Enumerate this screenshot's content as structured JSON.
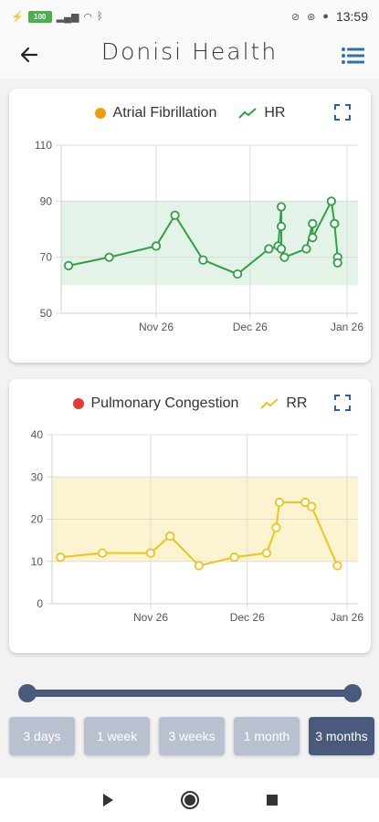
{
  "status_bar": {
    "time": "13:59",
    "battery": "100"
  },
  "app": {
    "title": "Donisi Health"
  },
  "colors": {
    "hr": "#2ea043",
    "rr": "#f0c419",
    "afib_dot": "#f39c12",
    "congestion_dot": "#e53935",
    "accent": "#4a5a7c",
    "inactive_button": "#b9c1d1"
  },
  "card1": {
    "indicator_label": "Atrial Fibrillation",
    "series_label": "HR"
  },
  "card2": {
    "indicator_label": "Pulmonary Congestion",
    "series_label": "RR"
  },
  "chart_data": [
    {
      "type": "line",
      "title": "",
      "series": [
        {
          "name": "HR",
          "x": [
            "Oct 29",
            "Nov 11",
            "Nov 26",
            "Dec 2",
            "Dec 11",
            "Dec 22",
            "Jan 1",
            "Jan 4",
            "Jan 5",
            "Jan 5",
            "Jan 5",
            "Jan 6",
            "Jan 13",
            "Jan 15",
            "Jan 15",
            "Jan 21",
            "Jan 22",
            "Jan 23",
            "Jan 23"
          ],
          "values": [
            67,
            70,
            74,
            85,
            69,
            64,
            73,
            74,
            88,
            81,
            73,
            70,
            73,
            82,
            77,
            90,
            82,
            70,
            68
          ]
        }
      ],
      "xticks": [
        "Nov 26",
        "Dec 26",
        "Jan 26"
      ],
      "yticks": [
        50,
        70,
        90,
        110
      ],
      "ylim": [
        50,
        110
      ],
      "normal_band": [
        60,
        90
      ],
      "grid": true
    },
    {
      "type": "line",
      "title": "",
      "series": [
        {
          "name": "RR",
          "x": [
            "Oct 29",
            "Nov 11",
            "Nov 26",
            "Dec 2",
            "Dec 11",
            "Dec 22",
            "Jan 1",
            "Jan 4",
            "Jan 5",
            "Jan 13",
            "Jan 15",
            "Jan 23"
          ],
          "values": [
            11,
            12,
            12,
            16,
            9,
            11,
            12,
            18,
            24,
            24,
            23,
            9
          ]
        }
      ],
      "xticks": [
        "Nov 26",
        "Dec 26",
        "Jan 26"
      ],
      "yticks": [
        0,
        10,
        20,
        30,
        40
      ],
      "ylim": [
        0,
        40
      ],
      "normal_band": [
        10,
        30
      ],
      "grid": true
    }
  ],
  "range_buttons": [
    "3 days",
    "1 week",
    "3 weeks",
    "1 month",
    "3 months"
  ],
  "selected_range": "3 months"
}
